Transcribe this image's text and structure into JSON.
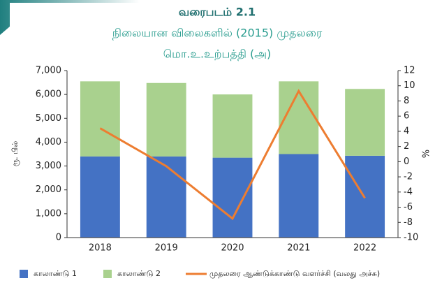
{
  "chart_data": {
    "type": "bar",
    "stacked": true,
    "title": "வரைபடம் 2.1",
    "subtitle": [
      "நிலையான விலைகளில் (2015) முதலரை",
      "மொ.உ.உற்பத்தி (அ)"
    ],
    "ylabel": "ரூ. பில்",
    "y2label": "%",
    "categories": [
      "2018",
      "2019",
      "2020",
      "2021",
      "2022"
    ],
    "series": [
      {
        "name": "காலாண்டு 1",
        "type": "bar",
        "color": "#4472c4",
        "values": [
          3400,
          3400,
          3350,
          3500,
          3430
        ]
      },
      {
        "name": "காலாண்டு 2",
        "type": "bar",
        "color": "#a9d18e",
        "values": [
          3150,
          3080,
          2650,
          3050,
          2800
        ]
      },
      {
        "name": "முதலரை ஆண்டுக்காண்டு வளர்ச்சி (வலது அச்சு)",
        "type": "line",
        "axis": "y2",
        "color": "#ed7d31",
        "values": [
          4.4,
          -0.6,
          -7.5,
          9.3,
          -4.8
        ]
      }
    ],
    "ylim": [
      0,
      7000
    ],
    "yticks": [
      0,
      {
        "value": 1000,
        "label": "1,000"
      },
      {
        "value": 2000,
        "label": "2,000"
      },
      {
        "value": 3000,
        "label": "3,000"
      },
      {
        "value": 4000,
        "label": "4,000"
      },
      {
        "value": 5000,
        "label": "5,000"
      },
      {
        "value": 6000,
        "label": "6,000"
      },
      {
        "value": 7000,
        "label": "7,000"
      }
    ],
    "y2lim": [
      -10,
      12
    ],
    "y2ticks": [
      -10,
      -8,
      -6,
      -4,
      -2,
      0,
      2,
      4,
      6,
      8,
      10,
      12
    ],
    "grid": false,
    "legend": "bottom"
  }
}
